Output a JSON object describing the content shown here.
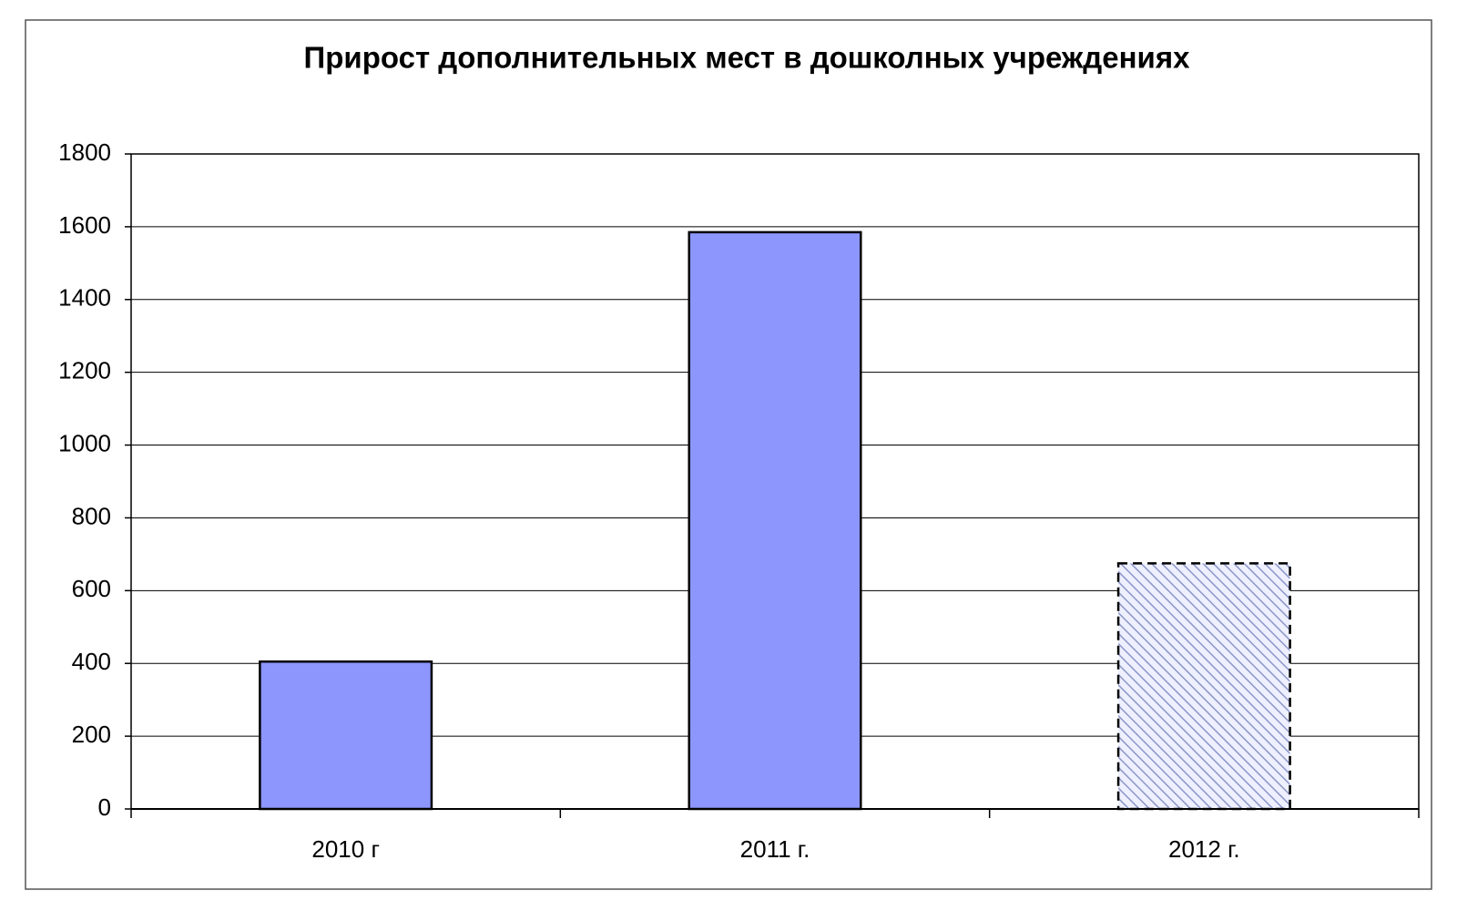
{
  "chart_data": {
    "type": "bar",
    "title": "Прирост дополнительных мест в дошколных учреждениях",
    "categories": [
      "2010 г",
      "2011 г.",
      "2012 г."
    ],
    "values": [
      405,
      1585,
      675
    ],
    "color": "#8c96fc",
    "hatched": [
      false,
      false,
      true
    ],
    "ylim": [
      0,
      1800
    ],
    "yticks": [
      0,
      200,
      400,
      600,
      800,
      1000,
      1200,
      1400,
      1600,
      1800
    ],
    "grid": true
  }
}
